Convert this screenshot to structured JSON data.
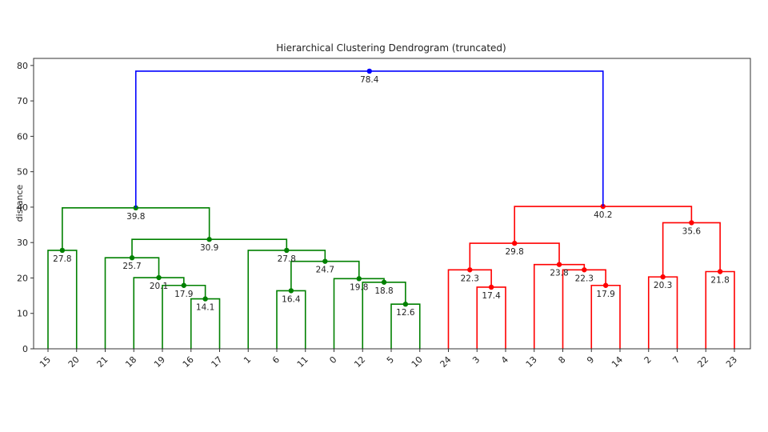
{
  "chart_data": {
    "type": "dendrogram",
    "title": "Hierarchical Clustering Dendrogram (truncated)",
    "xlabel": "",
    "ylabel": "distance",
    "ylim": [
      0,
      82
    ],
    "yticks": [
      0,
      10,
      20,
      30,
      40,
      50,
      60,
      70,
      80
    ],
    "leaves": [
      "15",
      "20",
      "21",
      "18",
      "19",
      "16",
      "17",
      "1",
      "6",
      "11",
      "0",
      "12",
      "5",
      "10",
      "24",
      "3",
      "4",
      "13",
      "8",
      "9",
      "14",
      "2",
      "7",
      "22",
      "23"
    ],
    "colors": {
      "green": "#008000",
      "red": "#ff0000",
      "blue": "#0000ff"
    },
    "merges": [
      {
        "id": "A",
        "left": "L:15",
        "right": "L:20",
        "height": 27.8,
        "color": "green",
        "label": "27.8"
      },
      {
        "id": "B",
        "left": "L:16",
        "right": "L:17",
        "height": 14.1,
        "color": "green",
        "label": "14.1"
      },
      {
        "id": "C",
        "left": "L:19",
        "right": "M:B",
        "height": 17.9,
        "color": "green",
        "label": "17.9"
      },
      {
        "id": "D",
        "left": "L:18",
        "right": "M:C",
        "height": 20.1,
        "color": "green",
        "label": "20.1"
      },
      {
        "id": "E",
        "left": "L:21",
        "right": "M:D",
        "height": 25.7,
        "color": "green",
        "label": "25.7"
      },
      {
        "id": "F",
        "left": "L:6",
        "right": "L:11",
        "height": 16.4,
        "color": "green",
        "label": "16.4"
      },
      {
        "id": "G",
        "left": "L:5",
        "right": "L:10",
        "height": 12.6,
        "color": "green",
        "label": "12.6"
      },
      {
        "id": "H",
        "left": "L:12",
        "right": "M:G",
        "height": 18.8,
        "color": "green",
        "label": "18.8"
      },
      {
        "id": "I",
        "left": "L:0",
        "right": "M:H",
        "height": 19.8,
        "color": "green",
        "label": "19.8"
      },
      {
        "id": "J",
        "left": "M:F",
        "right": "M:I",
        "height": 24.7,
        "color": "green",
        "label": "24.7"
      },
      {
        "id": "K",
        "left": "L:1",
        "right": "M:J",
        "height": 27.8,
        "color": "green",
        "label": "27.8"
      },
      {
        "id": "L",
        "left": "M:E",
        "right": "M:K",
        "height": 30.9,
        "color": "green",
        "label": "30.9"
      },
      {
        "id": "M",
        "left": "M:A",
        "right": "M:L",
        "height": 39.8,
        "color": "green",
        "label": "39.8"
      },
      {
        "id": "N",
        "left": "L:3",
        "right": "L:4",
        "height": 17.4,
        "color": "red",
        "label": "17.4"
      },
      {
        "id": "O",
        "left": "L:24",
        "right": "M:N",
        "height": 22.3,
        "color": "red",
        "label": "22.3"
      },
      {
        "id": "P",
        "left": "L:9",
        "right": "L:14",
        "height": 17.9,
        "color": "red",
        "label": "17.9"
      },
      {
        "id": "Q",
        "left": "L:8",
        "right": "M:P",
        "height": 22.3,
        "color": "red",
        "label": "22.3"
      },
      {
        "id": "R",
        "left": "L:13",
        "right": "M:Q",
        "height": 23.8,
        "color": "red",
        "label": "23.8"
      },
      {
        "id": "S",
        "left": "M:O",
        "right": "M:R",
        "height": 29.8,
        "color": "red",
        "label": "29.8"
      },
      {
        "id": "T",
        "left": "L:2",
        "right": "L:7",
        "height": 20.3,
        "color": "red",
        "label": "20.3"
      },
      {
        "id": "U",
        "left": "L:22",
        "right": "L:23",
        "height": 21.8,
        "color": "red",
        "label": "21.8"
      },
      {
        "id": "V",
        "left": "M:T",
        "right": "M:U",
        "height": 35.6,
        "color": "red",
        "label": "35.6"
      },
      {
        "id": "W",
        "left": "M:S",
        "right": "M:V",
        "height": 40.2,
        "color": "red",
        "label": "40.2"
      },
      {
        "id": "X",
        "left": "M:M",
        "right": "M:W",
        "height": 78.4,
        "color": "blue",
        "label": "78.4"
      }
    ]
  }
}
